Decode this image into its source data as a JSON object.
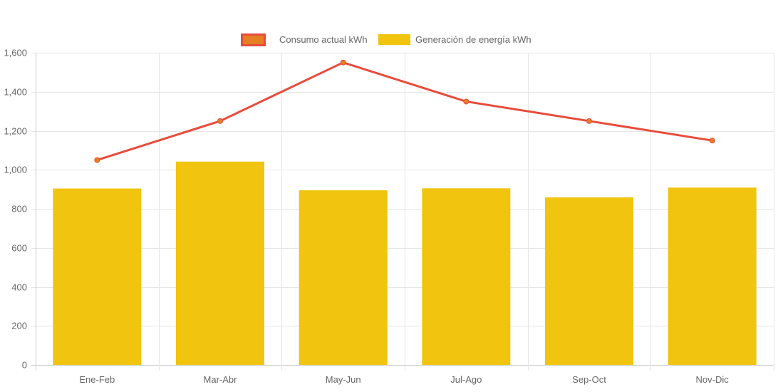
{
  "chart_data": {
    "type": "bar",
    "categories": [
      "Ene-Feb",
      "Mar-Abr",
      "May-Jun",
      "Jul-Ago",
      "Sep-Oct",
      "Nov-Dic"
    ],
    "series": [
      {
        "name": "Consumo actual kWh",
        "type": "line",
        "values": [
          1050,
          1250,
          1550,
          1350,
          1250,
          1150
        ],
        "color": "#e74c3c",
        "point_color": "#e67e22"
      },
      {
        "name": "Generación de energía kWh",
        "type": "bar",
        "values": [
          904,
          1042,
          895,
          905,
          859,
          909
        ],
        "color": "#f1c40f"
      }
    ],
    "ylim": [
      0,
      1600
    ],
    "yticks": [
      0,
      200,
      400,
      600,
      800,
      1000,
      1200,
      1400,
      1600
    ],
    "ytick_labels": [
      "0",
      "200",
      "400",
      "600",
      "800",
      "1,000",
      "1,200",
      "1,400",
      "1,600"
    ],
    "grid": true,
    "legend": "top"
  }
}
